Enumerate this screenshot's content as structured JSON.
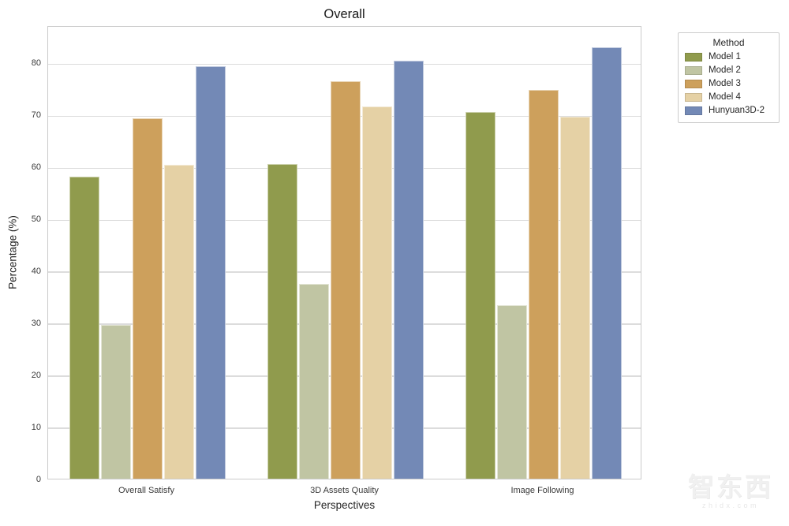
{
  "chart_data": {
    "type": "bar",
    "title": "Overall",
    "xlabel": "Perspectives",
    "ylabel": "Percentage (%)",
    "ylim": [
      0,
      87.2
    ],
    "yticks": [
      0,
      10,
      20,
      30,
      40,
      50,
      60,
      70,
      80
    ],
    "grid": "horizontal-only, light gray, on",
    "categories": [
      "Overall Satisfy",
      "3D Assets Quality",
      "Image Following"
    ],
    "legend_title": "Method",
    "legend_position": "outside upper right",
    "series": [
      {
        "name": "Model 1",
        "color": "#909b4d",
        "values": [
          58.1,
          60.5,
          70.5
        ]
      },
      {
        "name": "Model 2",
        "color": "#c0c5a3",
        "values": [
          29.6,
          37.4,
          33.3
        ]
      },
      {
        "name": "Model 3",
        "color": "#cda05c",
        "values": [
          69.3,
          76.4,
          74.7
        ]
      },
      {
        "name": "Model 4",
        "color": "#e5d1a5",
        "values": [
          60.4,
          71.6,
          69.6
        ]
      },
      {
        "name": "Hunyuan3D-2",
        "color": "#7389b6",
        "values": [
          79.3,
          80.4,
          83.0
        ]
      }
    ],
    "frame_color": "#cbcbcb",
    "gridline_color": "#dcdcdc"
  },
  "watermark": {
    "text": "智东西",
    "subtext": "zhidx.com"
  }
}
